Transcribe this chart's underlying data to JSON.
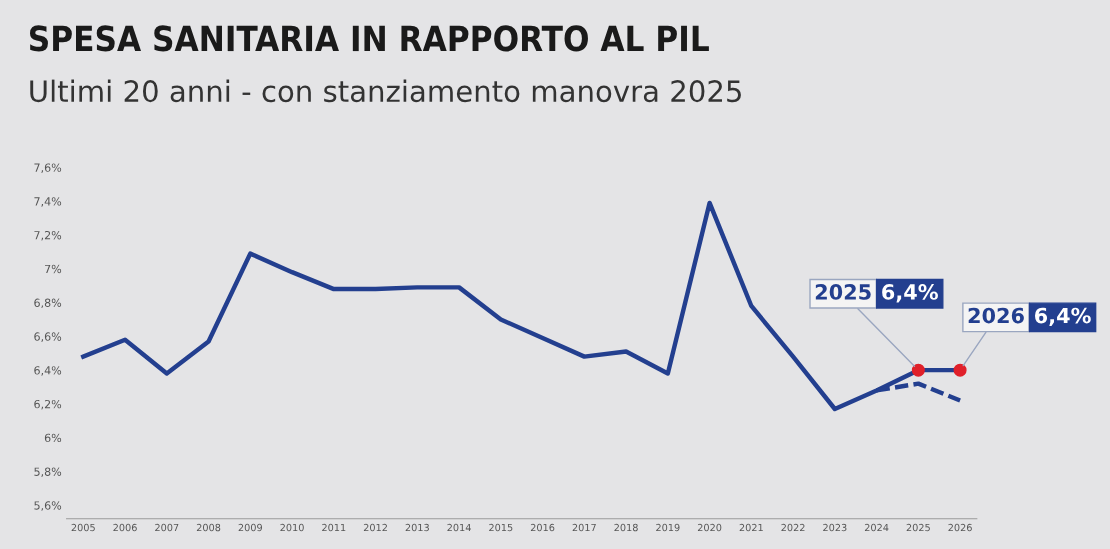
{
  "chart_data": {
    "type": "line",
    "title": "SPESA SANITARIA IN RAPPORTO AL PIL",
    "subtitle": "Ultimi 20 anni - con stanziamento manovra 2025",
    "series": [
      {
        "x": [
          2005,
          2006,
          2007,
          2008,
          2009,
          2010,
          2011,
          2012,
          2013,
          2014,
          2015,
          2016,
          2017,
          2018,
          2019,
          2020,
          2021,
          2022,
          2023,
          2024,
          2025,
          2026
        ],
        "values": [
          6.48,
          6.58,
          6.38,
          6.57,
          7.09,
          6.98,
          6.88,
          6.88,
          6.89,
          6.89,
          6.7,
          6.59,
          6.48,
          6.51,
          6.38,
          7.39,
          6.78,
          6.48,
          6.17,
          6.28,
          6.4,
          6.4
        ],
        "color": "#233f8f",
        "line_style": "solid",
        "marker": "none"
      },
      {
        "type": "scatter",
        "x": [
          2025,
          2026
        ],
        "values": [
          6.4,
          6.4
        ],
        "color": "#e0202a",
        "marker": "circle"
      },
      {
        "x": [
          2024,
          2025,
          2026
        ],
        "values": [
          6.28,
          6.32,
          6.22
        ],
        "color": "#233f8f",
        "line_style": "dashed",
        "marker": "none"
      }
    ],
    "xlim": [
      2004.6,
      2026.4
    ],
    "xticks": [
      2005,
      2006,
      2007,
      2008,
      2009,
      2010,
      2011,
      2012,
      2013,
      2014,
      2015,
      2016,
      2017,
      2018,
      2019,
      2020,
      2021,
      2022,
      2023,
      2024,
      2025,
      2026
    ],
    "ylim": [
      5.52,
      7.6
    ],
    "yticks": [
      {
        "value": 5.6,
        "label": "5,6%"
      },
      {
        "value": 5.8,
        "label": "5,8%"
      },
      {
        "value": 6,
        "label": "6%"
      },
      {
        "value": 6.2,
        "label": "6,2%"
      },
      {
        "value": 6.4,
        "label": "6,4%"
      },
      {
        "value": 6.6,
        "label": "6,6%"
      },
      {
        "value": 6.8,
        "label": "6,8%"
      },
      {
        "value": 7,
        "label": "7%"
      },
      {
        "value": 7.2,
        "label": "7,2%"
      },
      {
        "value": 7.4,
        "label": "7,4%"
      },
      {
        "value": 7.6,
        "label": "7,6%"
      }
    ],
    "grid": false,
    "annotations": [
      {
        "text": "2025 6,4%",
        "x": 2025,
        "y": 6.4
      },
      {
        "text": "2026 6,4%",
        "x": 2026,
        "y": 6.4
      }
    ]
  }
}
